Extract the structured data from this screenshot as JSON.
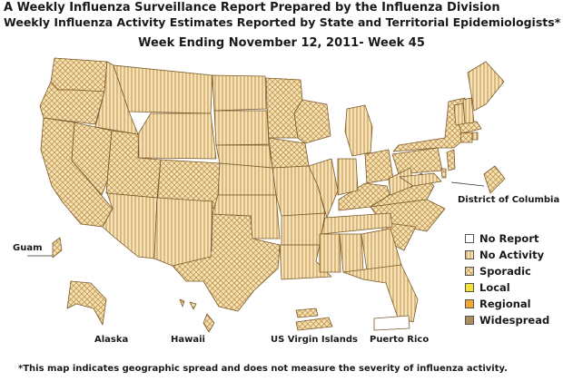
{
  "titles": {
    "line1": "A Weekly Influenza Surveillance Report Prepared by the Influenza Division",
    "line2": "Weekly Influenza Activity Estimates Reported by State and Territorial Epidemiologists*",
    "week": "Week Ending November 12, 2011- Week 45"
  },
  "labels": {
    "dc": "District of Columbia",
    "guam": "Guam",
    "alaska": "Alaska",
    "hawaii": "Hawaii",
    "usvi": "US Virgin Islands",
    "pr": "Puerto Rico"
  },
  "legend": [
    {
      "key": "no-report",
      "label": "No Report",
      "fill": "#ffffff"
    },
    {
      "key": "no-activity",
      "label": "No Activity",
      "fill": "url(#pVert)"
    },
    {
      "key": "sporadic",
      "label": "Sporadic",
      "fill": "url(#pCross)"
    },
    {
      "key": "local",
      "label": "Local",
      "fill": "#f5e13a"
    },
    {
      "key": "regional",
      "label": "Regional",
      "fill": "#f0a830"
    },
    {
      "key": "widespread",
      "label": "Widespread",
      "fill": "#b08a60"
    }
  ],
  "colors": {
    "base": "#f7e2b8",
    "hatch": "#c49a50",
    "border": "#7a5a2a"
  },
  "footnote": "*This map indicates geographic spread and does not measure the severity of influenza activity."
}
